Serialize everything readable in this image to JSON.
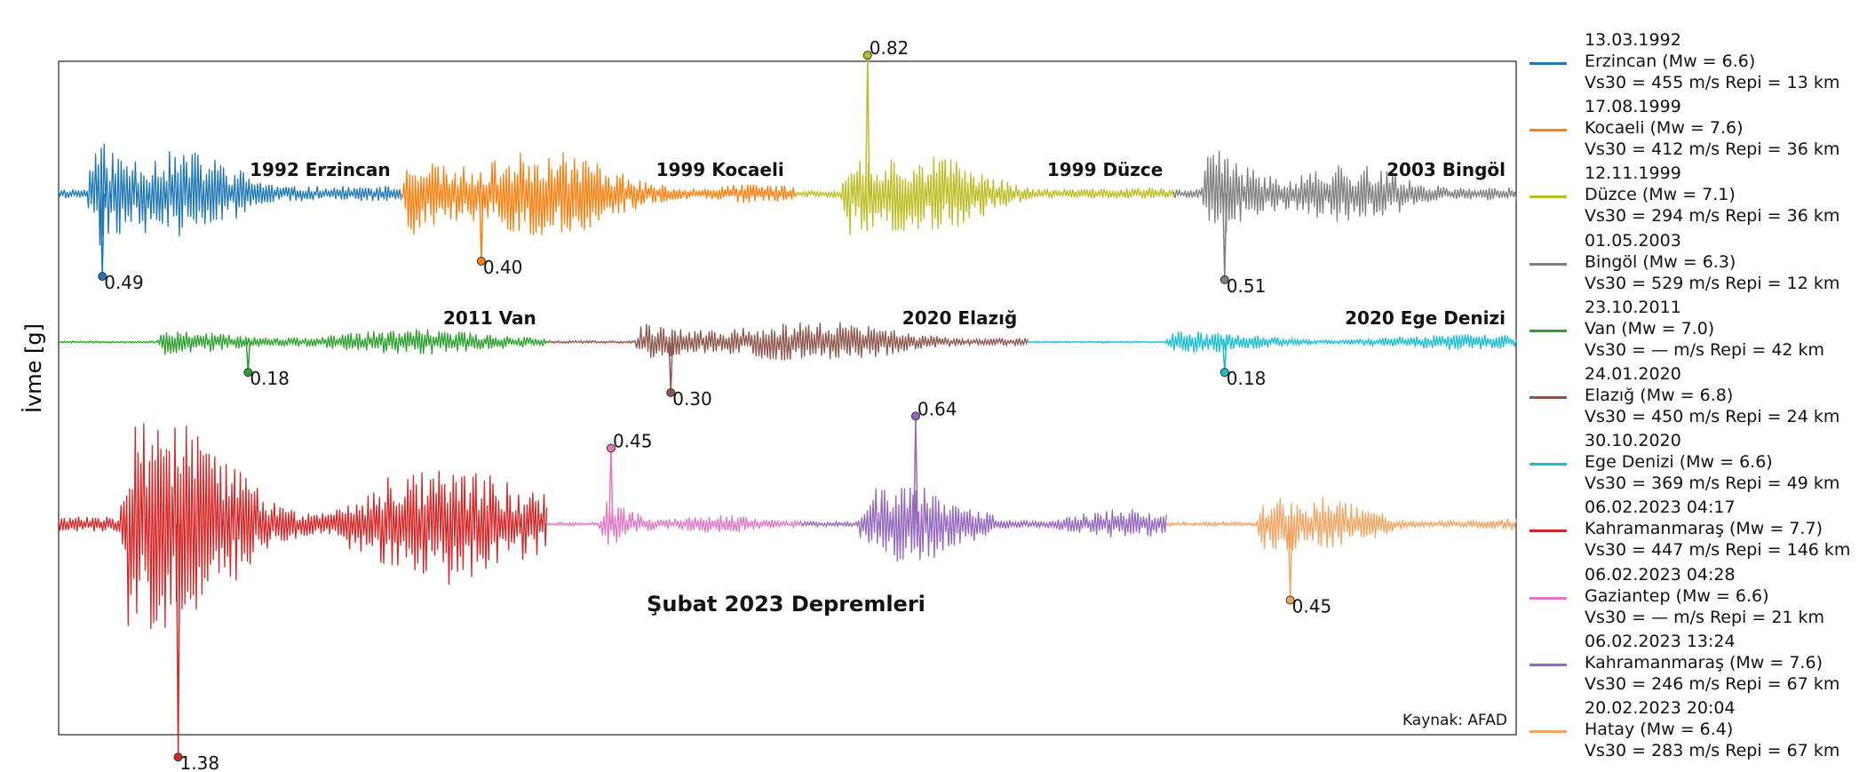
{
  "chart_data": {
    "type": "line",
    "ylabel": "İvme [g]",
    "source_note": "Kaynak: AFAD",
    "group_title": "Şubat 2023 Depremleri",
    "series": [
      {
        "key": "erzincan",
        "row": 0,
        "x0": 0.0,
        "x1": 0.235,
        "amp": 0.75,
        "onset": 0.08,
        "decay": 3.2,
        "peak": 0.49,
        "peak_x": 0.03,
        "peak_sign": -1,
        "label_title": "1992 Erzincan",
        "color": "#1f77b4",
        "seed": 11,
        "date": "13.03.1992",
        "name": "Erzincan (Mw = 6.6)",
        "site": "Vs30 = 455 m/s Repi = 13 km"
      },
      {
        "key": "kocaeli",
        "row": 0,
        "x0": 0.235,
        "x1": 0.505,
        "amp": 0.55,
        "onset": 0.0,
        "decay": 1.8,
        "peak": 0.4,
        "peak_x": 0.29,
        "peak_sign": -1,
        "label_title": "1999 Kocaeli",
        "color": "#ff7f0e",
        "seed": 23,
        "date": "17.08.1999",
        "name": "Kocaeli (Mw = 7.6)",
        "site": "Vs30 = 412 m/s Repi = 36 km"
      },
      {
        "key": "duzce",
        "row": 0,
        "x0": 0.505,
        "x1": 0.765,
        "amp": 0.5,
        "onset": 0.12,
        "decay": 2.6,
        "peak": 0.82,
        "peak_x": 0.555,
        "peak_sign": 1,
        "label_title": "1999 Düzce",
        "color": "#bcbd22",
        "seed": 37,
        "date": "12.11.1999",
        "name": "Düzce (Mw = 7.1)",
        "site": "Vs30 = 294 m/s Repi = 36 km"
      },
      {
        "key": "bingol",
        "row": 0,
        "x0": 0.765,
        "x1": 1.0,
        "amp": 0.65,
        "onset": 0.08,
        "decay": 2.8,
        "peak": 0.51,
        "peak_x": 0.8,
        "peak_sign": -1,
        "label_title": "2003 Bingöl",
        "color": "#7f7f7f",
        "seed": 41,
        "date": "01.05.2003",
        "name": "Bingöl (Mw = 6.3)",
        "site": "Vs30 = 529 m/s Repi = 12 km"
      },
      {
        "key": "van",
        "row": 1,
        "x0": 0.0,
        "x1": 0.335,
        "amp": 0.15,
        "onset": 0.2,
        "decay": 1.2,
        "peak": 0.18,
        "peak_x": 0.13,
        "peak_sign": -1,
        "label_title": "2011 Van",
        "color": "#2ca02c",
        "seed": 53,
        "date": "23.10.2011",
        "name": "Van (Mw = 7.0)",
        "site": "Vs30 = — m/s Repi = 42 km"
      },
      {
        "key": "elazig",
        "row": 1,
        "x0": 0.335,
        "x1": 0.665,
        "amp": 0.22,
        "onset": 0.18,
        "decay": 1.4,
        "peak": 0.3,
        "peak_x": 0.42,
        "peak_sign": -1,
        "label_title": "2020 Elazığ",
        "color": "#8c564b",
        "seed": 67,
        "date": "24.01.2020",
        "name": "Elazığ (Mw = 6.8)",
        "site": "Vs30 = 450 m/s Repi = 24 km"
      },
      {
        "key": "ege",
        "row": 1,
        "x0": 0.665,
        "x1": 1.0,
        "amp": 0.12,
        "onset": 0.28,
        "decay": 1.3,
        "peak": 0.18,
        "peak_x": 0.8,
        "peak_sign": -1,
        "label_title": "2020 Ege Denizi",
        "color": "#17becf",
        "seed": 71,
        "date": "30.10.2020",
        "name": "Ege Denizi (Mw = 6.6)",
        "site": "Vs30 = 369 m/s Repi = 49 km"
      },
      {
        "key": "kahramanmaras1",
        "row": 2,
        "x0": 0.0,
        "x1": 0.335,
        "amp": 1.15,
        "onset": 0.12,
        "decay": 1.5,
        "peak": 1.38,
        "peak_x": 0.082,
        "peak_sign": -1,
        "label_title": "",
        "color": "#d62728",
        "seed": 83,
        "date": "06.02.2023 04:17",
        "name": "Kahramanmaraş (Mw = 7.7)",
        "site": "Vs30 = 447 m/s Repi = 146 km"
      },
      {
        "key": "gaziantep",
        "row": 2,
        "x0": 0.335,
        "x1": 0.51,
        "amp": 0.3,
        "onset": 0.2,
        "decay": 3.2,
        "peak": 0.45,
        "peak_x": 0.379,
        "peak_sign": 1,
        "label_title": "",
        "color": "#e377c2",
        "seed": 97,
        "date": "06.02.2023 04:28",
        "name": "Gaziantep (Mw = 6.6)",
        "site": "Vs30 = — m/s Repi = 21 km"
      },
      {
        "key": "kahramanmaras2",
        "row": 2,
        "x0": 0.51,
        "x1": 0.76,
        "amp": 0.38,
        "onset": 0.15,
        "decay": 1.6,
        "peak": 0.64,
        "peak_x": 0.588,
        "peak_sign": 1,
        "label_title": "",
        "color": "#9467bd",
        "seed": 101,
        "date": "06.02.2023 13:24",
        "name": "Kahramanmaraş (Mw = 7.6)",
        "site": "Vs30 = 246 m/s Repi = 67 km"
      },
      {
        "key": "hatay",
        "row": 2,
        "x0": 0.76,
        "x1": 1.0,
        "amp": 0.3,
        "onset": 0.25,
        "decay": 2.2,
        "peak": 0.45,
        "peak_x": 0.845,
        "peak_sign": -1,
        "label_title": "",
        "color": "#f4a460",
        "seed": 113,
        "date": "20.02.2023 20:04",
        "name": "Hatay (Mw = 6.4)",
        "site": "Vs30 = 283 m/s Repi = 67 km"
      }
    ]
  }
}
